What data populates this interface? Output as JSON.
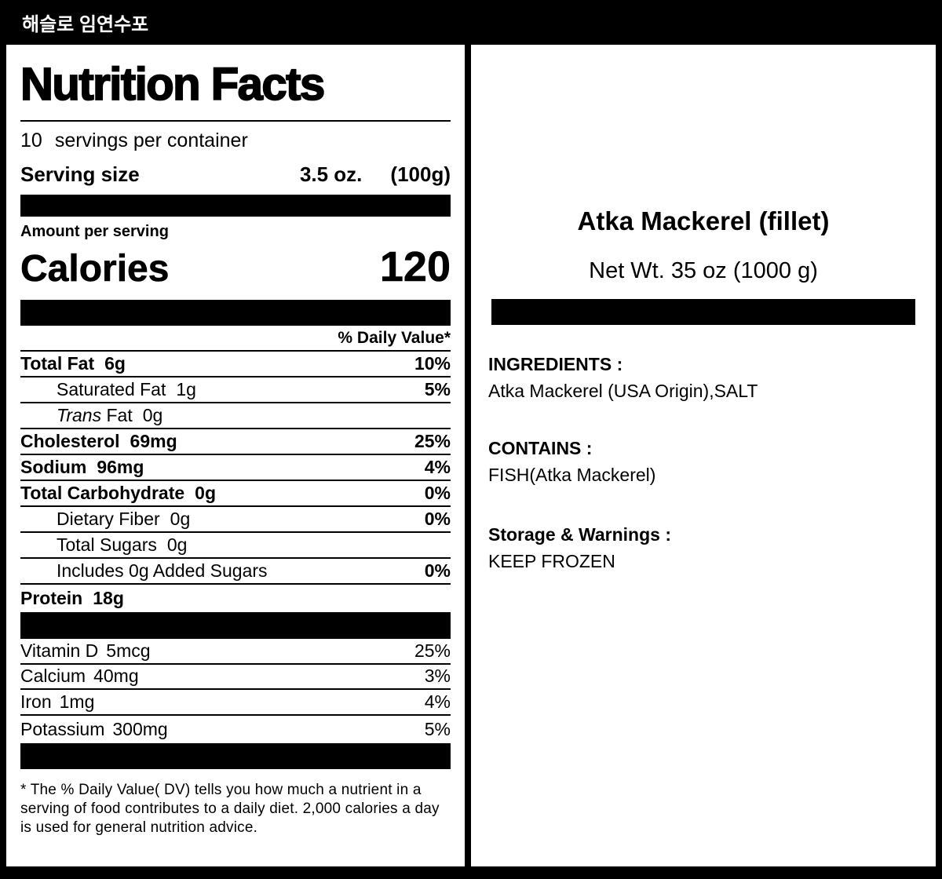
{
  "header": {
    "title": "해슬로 임연수포"
  },
  "nutrition": {
    "title": "Nutrition Facts",
    "servings_count": "10",
    "servings_text": "servings per container",
    "serving_size_label": "Serving size",
    "serving_size_oz": "3.5 oz.",
    "serving_size_g": "(100g)",
    "amount_per_serving": "Amount per serving",
    "calories_label": "Calories",
    "calories_value": "120",
    "daily_value_header": "% Daily Value*",
    "rows": [
      {
        "name": "Total Fat",
        "amount": "6g",
        "dv": "10%"
      },
      {
        "name": "Saturated Fat",
        "amount": "1g",
        "dv": "5%"
      },
      {
        "name_italic": "Trans",
        "name": " Fat",
        "amount": "0g",
        "dv": ""
      },
      {
        "name": "Cholesterol",
        "amount": "69mg",
        "dv": "25%"
      },
      {
        "name": "Sodium",
        "amount": "96mg",
        "dv": "4%"
      },
      {
        "name": "Total Carbohydrate",
        "amount": "0g",
        "dv": "0%"
      },
      {
        "name": "Dietary Fiber",
        "amount": "0g",
        "dv": "0%"
      },
      {
        "name": "Total Sugars",
        "amount": "0g",
        "dv": ""
      },
      {
        "name": "Includes 0g Added Sugars",
        "amount": "",
        "dv": "0%"
      },
      {
        "name": "Protein",
        "amount": "18g",
        "dv": ""
      }
    ],
    "vitamins": [
      {
        "name": "Vitamin D",
        "amount": "5mcg",
        "dv": "25%"
      },
      {
        "name": "Calcium",
        "amount": "40mg",
        "dv": "3%"
      },
      {
        "name": "Iron",
        "amount": "1mg",
        "dv": "4%"
      },
      {
        "name": "Potassium",
        "amount": "300mg",
        "dv": "5%"
      }
    ],
    "footnote": "* The % Daily Value( DV) tells you how much a nutrient in a serving of food contributes to a daily diet. 2,000 calories a day is used for general nutrition advice."
  },
  "product": {
    "name": "Atka Mackerel (fillet)",
    "net_weight": "Net Wt. 35 oz (1000 g)",
    "ingredients_label": "INGREDIENTS :",
    "ingredients": "Atka Mackerel (USA Origin),SALT",
    "contains_label": "CONTAINS :",
    "contains": "FISH(Atka Mackerel)",
    "storage_label": "Storage & Warnings :",
    "storage": "KEEP FROZEN"
  },
  "colors": {
    "ink": "#000000",
    "paper": "#ffffff"
  }
}
